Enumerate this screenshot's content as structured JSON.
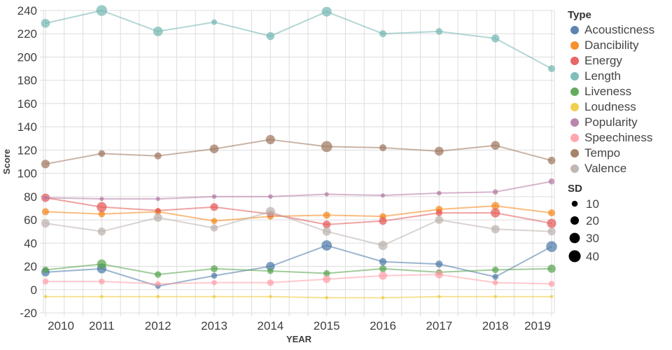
{
  "chart_data": {
    "type": "line",
    "title": "",
    "xlabel": "YEAR",
    "ylabel": "Score",
    "x": [
      2010,
      2011,
      2012,
      2013,
      2014,
      2015,
      2016,
      2017,
      2018,
      2019
    ],
    "ylim": [
      -20,
      240
    ],
    "ytick_step": 20,
    "x_minor_divisions_per_year": 3,
    "grid": true,
    "legend_position": "right",
    "series": [
      {
        "name": "Acousticness",
        "color": "#4c78a8",
        "values": [
          15,
          18,
          3,
          12,
          20,
          38,
          24,
          22,
          11,
          37
        ],
        "sd": [
          20,
          25,
          8,
          10,
          22,
          30,
          15,
          14,
          10,
          33
        ]
      },
      {
        "name": "Dancibility",
        "color": "#f58518",
        "values": [
          67,
          65,
          67,
          59,
          63,
          64,
          63,
          69,
          72,
          66
        ],
        "sd": [
          14,
          12,
          12,
          10,
          12,
          14,
          12,
          14,
          17,
          14
        ]
      },
      {
        "name": "Energy",
        "color": "#e45756",
        "values": [
          79,
          71,
          68,
          71,
          65,
          56,
          59,
          66,
          66,
          57
        ],
        "sd": [
          20,
          28,
          8,
          17,
          12,
          17,
          17,
          12,
          24,
          24
        ]
      },
      {
        "name": "Length",
        "color": "#72b7b2",
        "values": [
          229,
          240,
          222,
          230,
          218,
          239,
          220,
          222,
          216,
          190
        ],
        "sd": [
          22,
          33,
          26,
          9,
          18,
          27,
          14,
          13,
          18,
          14
        ]
      },
      {
        "name": "Liveness",
        "color": "#54a24b",
        "values": [
          17,
          22,
          13,
          18,
          16,
          14,
          18,
          15,
          17,
          18
        ],
        "sd": [
          12,
          24,
          12,
          14,
          10,
          12,
          14,
          10,
          12,
          19
        ]
      },
      {
        "name": "Loudness",
        "color": "#eeca3b",
        "values": [
          -6,
          -6,
          -6,
          -6,
          -6,
          -7,
          -7,
          -6,
          -6,
          -6
        ],
        "sd": [
          3,
          3,
          3,
          3,
          3,
          3,
          3,
          3,
          3,
          3
        ]
      },
      {
        "name": "Popularity",
        "color": "#b279a2",
        "values": [
          79,
          78,
          78,
          80,
          80,
          82,
          81,
          83,
          84,
          93
        ],
        "sd": [
          5,
          5,
          5,
          6,
          6,
          5,
          5,
          6,
          8,
          10
        ]
      },
      {
        "name": "Speechiness",
        "color": "#ff9da6",
        "values": [
          7,
          7,
          5,
          6,
          6,
          9,
          12,
          13,
          6,
          5
        ],
        "sd": [
          10,
          10,
          8,
          8,
          12,
          17,
          19,
          17,
          8,
          10
        ]
      },
      {
        "name": "Tempo",
        "color": "#9d755d",
        "values": [
          108,
          117,
          115,
          121,
          129,
          123,
          122,
          119,
          124,
          111
        ],
        "sd": [
          20,
          13,
          14,
          22,
          24,
          34,
          14,
          22,
          22,
          16
        ]
      },
      {
        "name": "Valence",
        "color": "#bab0ac",
        "values": [
          57,
          50,
          62,
          53,
          67,
          50,
          38,
          60,
          52,
          50
        ],
        "sd": [
          20,
          18,
          20,
          15,
          25,
          20,
          24,
          18,
          20,
          17
        ]
      }
    ],
    "legend": {
      "type_title": "Type",
      "size_title": "SD",
      "size_values": [
        10,
        20,
        30,
        40
      ],
      "size_dot_color": "#000000"
    },
    "style": {
      "grid_color": "#dddddd",
      "tick_label_color": "#404040",
      "axis_title_color": "#3d3d3d",
      "legend_text_color": "#454545",
      "legend_title_color": "#333333",
      "line_opacity": 0.55,
      "point_opacity": 0.7
    }
  }
}
